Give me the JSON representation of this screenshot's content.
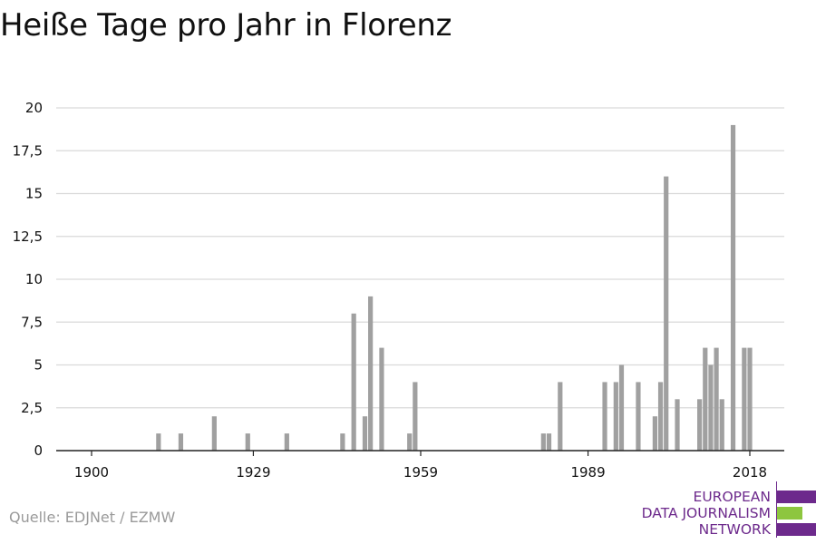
{
  "title": "Heiße Tage pro Jahr in Florenz",
  "source": "Quelle: EDJNet / EZMW",
  "logo": {
    "lines": [
      "EUROPEAN",
      "DATA JOURNALISM",
      "NETWORK"
    ],
    "colors": [
      "#6d2a8c",
      "#8dc63f",
      "#6d2a8c"
    ]
  },
  "colors": {
    "bar": "#a0a0a0",
    "grid": "#d9d9d9",
    "axis": "#222222",
    "text": "#111111"
  },
  "chart_data": {
    "type": "bar",
    "title": "Heiße Tage pro Jahr in Florenz",
    "xlabel": "",
    "ylabel": "",
    "xlim": [
      1900,
      2018
    ],
    "ylim": [
      0,
      20
    ],
    "grid": true,
    "legend": "none",
    "x_ticks": [
      {
        "value": 1900,
        "label": "1900"
      },
      {
        "value": 1929,
        "label": "1929"
      },
      {
        "value": 1959,
        "label": "1959"
      },
      {
        "value": 1989,
        "label": "1989"
      },
      {
        "value": 2018,
        "label": "2018"
      }
    ],
    "y_ticks": [
      {
        "value": 0,
        "label": "0"
      },
      {
        "value": 2.5,
        "label": "2,5"
      },
      {
        "value": 5,
        "label": "5"
      },
      {
        "value": 7.5,
        "label": "7,5"
      },
      {
        "value": 10,
        "label": "10"
      },
      {
        "value": 12.5,
        "label": "12,5"
      },
      {
        "value": 15,
        "label": "15"
      },
      {
        "value": 17.5,
        "label": "17,5"
      },
      {
        "value": 20,
        "label": "20"
      }
    ],
    "series": [
      {
        "x": [
          1912,
          1916,
          1922,
          1928,
          1935,
          1945,
          1947,
          1949,
          1950,
          1952,
          1957,
          1958,
          1981,
          1982,
          1984,
          1992,
          1994,
          1995,
          1998,
          2001,
          2002,
          2003,
          2005,
          2009,
          2010,
          2011,
          2012,
          2013,
          2015,
          2017,
          2018
        ],
        "values": [
          1,
          1,
          2,
          1,
          1,
          1,
          8,
          2,
          9,
          6,
          1,
          4,
          1,
          1,
          4,
          4,
          4,
          5,
          4,
          2,
          4,
          16,
          3,
          3,
          6,
          5,
          6,
          3,
          19,
          6,
          6
        ]
      }
    ]
  }
}
